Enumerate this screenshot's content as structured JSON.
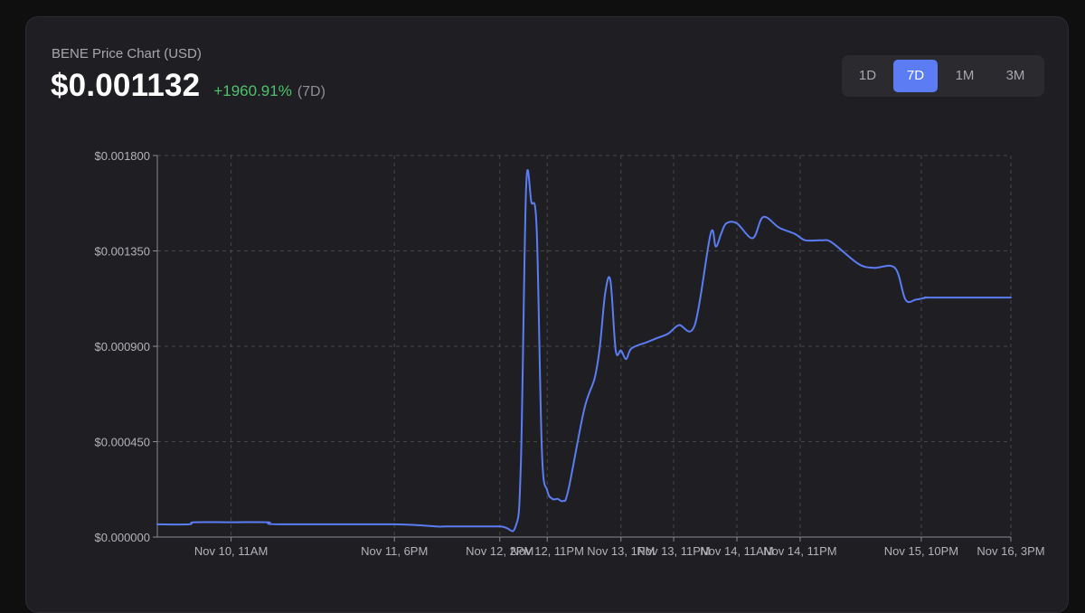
{
  "header": {
    "title": "BENE Price Chart (USD)",
    "price": "$0.001132",
    "change": "+1960.91%",
    "period": "(7D)"
  },
  "ranges": {
    "items": [
      {
        "label": "1D",
        "active": false
      },
      {
        "label": "7D",
        "active": true
      },
      {
        "label": "1M",
        "active": false
      },
      {
        "label": "3M",
        "active": false
      }
    ]
  },
  "colors": {
    "line": "#5b7cf2",
    "up": "#4fc36b",
    "active_button": "#5b7cf2",
    "card_background": "#1f1f23"
  },
  "chart_data": {
    "type": "line",
    "title": "",
    "xlabel": "",
    "ylabel": "",
    "y_ticks": [
      "$0.000000",
      "$0.000450",
      "$0.000900",
      "$0.001350",
      "$0.001800"
    ],
    "x_ticks": [
      "Nov 10, 11AM",
      "Nov 11, 6PM",
      "Nov 12, 2PM",
      "Nov 12, 11PM",
      "Nov 13, 1PM",
      "Nov 13, 11PM",
      "Nov 14, 11AM",
      "Nov 14, 11PM",
      "Nov 15, 10PM",
      "Nov 16, 3PM"
    ],
    "ylim": [
      0,
      0.0018
    ],
    "grid": true,
    "legend": "none",
    "series": [
      {
        "x": [
          "Nov 9, 9PM",
          "Nov 10, 3AM",
          "Nov 10, 4AM",
          "Nov 10, 11AM",
          "Nov 10, 6PM",
          "Nov 10, 8PM",
          "Nov 11, 6PM",
          "Nov 12, 2AM",
          "Nov 12, 4AM",
          "Nov 12, 2PM",
          "Nov 12, 5PM",
          "Nov 12, 6PM",
          "Nov 12, 7PM",
          "Nov 12, 8PM",
          "Nov 12, 9PM",
          "Nov 12, 10PM",
          "Nov 12, 11PM",
          "Nov 13, 12AM",
          "Nov 13, 1AM",
          "Nov 13, 2AM",
          "Nov 13, 3AM",
          "Nov 13, 6AM",
          "Nov 13, 8AM",
          "Nov 13, 9AM",
          "Nov 13, 10AM",
          "Nov 13, 11AM",
          "Nov 13, 12PM",
          "Nov 13, 1PM",
          "Nov 13, 2PM",
          "Nov 13, 3PM",
          "Nov 13, 6PM",
          "Nov 13, 8PM",
          "Nov 13, 10PM",
          "Nov 14, 12AM",
          "Nov 14, 3AM",
          "Nov 14, 6AM",
          "Nov 14, 7AM",
          "Nov 14, 8AM",
          "Nov 14, 9AM",
          "Nov 14, 11AM",
          "Nov 14, 2PM",
          "Nov 14, 4PM",
          "Nov 14, 7PM",
          "Nov 14, 10PM",
          "Nov 15, 12AM",
          "Nov 15, 3AM",
          "Nov 15, 5AM",
          "Nov 15, 10AM",
          "Nov 15, 1PM",
          "Nov 15, 5PM",
          "Nov 15, 7PM",
          "Nov 15, 9PM",
          "Nov 15, 11PM",
          "Nov 16, 12AM",
          "Nov 16, 3PM"
        ],
        "y": [
          6e-05,
          6e-05,
          7e-05,
          7e-05,
          7e-05,
          6e-05,
          6e-05,
          5e-05,
          5e-05,
          5e-05,
          5e-05,
          0.00035,
          0.00165,
          0.00158,
          0.00145,
          0.0004,
          0.00022,
          0.00018,
          0.00018,
          0.00017,
          0.00022,
          0.0006,
          0.00075,
          0.0009,
          0.00115,
          0.00121,
          0.00088,
          0.00088,
          0.00084,
          0.00089,
          0.00092,
          0.00094,
          0.00096,
          0.001,
          0.001,
          0.00143,
          0.00137,
          0.00143,
          0.00148,
          0.00148,
          0.00141,
          0.00151,
          0.00146,
          0.00143,
          0.0014,
          0.0014,
          0.00139,
          0.00129,
          0.00127,
          0.00127,
          0.00112,
          0.00112,
          0.00113,
          0.00113,
          0.00113
        ]
      }
    ]
  }
}
